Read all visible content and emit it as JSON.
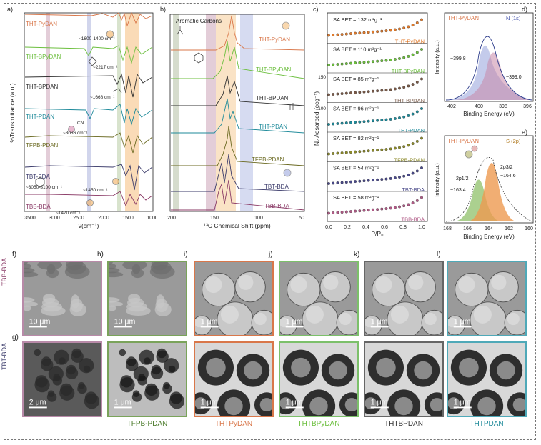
{
  "panels": {
    "a": {
      "letter": "a)",
      "ylabel": "%Transmittance (a.u.)",
      "xlabel": "ν(cm⁻¹)",
      "xticks": [
        "3500",
        "3000",
        "2500",
        "2000",
        "1500",
        "1000"
      ],
      "samples": [
        "THT-PyDAN",
        "THT-BPyDAN",
        "THT-BPDAN",
        "THT-PDAN",
        "TFPB-PDAN",
        "TBT-BDA",
        "TBB-BDA"
      ],
      "annotations": [
        "~1600-1400 cm⁻¹",
        "~2217 cm⁻¹",
        "~1668 cm⁻¹",
        "~3036 cm⁻¹",
        "~3050-3100 cm⁻¹",
        "~1450 cm⁻¹",
        "~1470 cm⁻¹",
        "CN"
      ]
    },
    "b": {
      "letter": "b)",
      "header": "Aromatic Carbons",
      "xlabel": "¹³C Chemical Shift (ppm)",
      "xticks": [
        "200",
        "150",
        "100",
        "50"
      ],
      "samples": [
        "THT-PyDAN",
        "THT-BPyDAN",
        "THT-BPDAN",
        "THT-PDAN",
        "TFPB-PDAN",
        "TBT-BDA",
        "TBB-BDA"
      ]
    },
    "c": {
      "letter": "c)",
      "ylabel": "N₂ Adsorbed (ccg⁻¹)",
      "xlabel": "P/P₀",
      "xticks": [
        "0.0",
        "0.2",
        "0.4",
        "0.6",
        "0.8",
        "1.0"
      ],
      "yticks": [
        "100",
        "150"
      ],
      "rows": [
        {
          "sample": "THT-PyDAN",
          "sa": "SA BET = 132 m²g⁻¹",
          "color": "#e07a2b"
        },
        {
          "sample": "THT-BPyDAN",
          "sa": "SA BET = 110 m²g⁻¹",
          "color": "#6cbf3e"
        },
        {
          "sample": "THT-BPDAN",
          "sa": "SA BET = 85 m²g⁻¹",
          "color": "#7a5a48"
        },
        {
          "sample": "THT-PDAN",
          "sa": "SA BET = 96 m²g⁻¹",
          "color": "#1e8a9a"
        },
        {
          "sample": "TFPB-PDAN",
          "sa": "SA BET = 82 m²g⁻¹",
          "color": "#8c8a2a"
        },
        {
          "sample": "TBT-BDA",
          "sa": "SA BET = 54 m²g⁻¹",
          "color": "#4a4a8a"
        },
        {
          "sample": "TBB-BDA",
          "sa": "SA BET = 58 m²g⁻¹",
          "color": "#b05a86"
        }
      ]
    },
    "d": {
      "letter": "d)",
      "sample": "THT-PyDAN",
      "level": "N (1s)",
      "ylabel": "Intensity (a.u.)",
      "xlabel": "Binding Energy (eV)",
      "xticks": [
        "402",
        "400",
        "398",
        "396"
      ],
      "peaks": [
        "~399.8",
        "~399.0"
      ]
    },
    "e": {
      "letter": "e)",
      "sample": "THT-PyDAN",
      "level": "S (2p)",
      "ylabel": "Intensity (a.u.)",
      "xlabel": "Binding Energy (eV)",
      "xticks": [
        "168",
        "166",
        "164",
        "162",
        "160"
      ],
      "peaks": [
        "2p1/2",
        "~163.4",
        "2p3/2",
        "~164.6"
      ]
    }
  },
  "micrographs": {
    "top_letters": [
      "f)",
      "h)",
      "i)",
      "j)",
      "k)",
      "l)"
    ],
    "bottom_letters": [
      "g)",
      "",
      "",
      "",
      "",
      ""
    ],
    "row_labels": [
      "TBB-BDA",
      "TBT-BDA"
    ],
    "top_scales": [
      "10 μm",
      "10 μm",
      "1 μm",
      "1 μm",
      "1 μm",
      "1 μm"
    ],
    "bottom_scales": [
      "2 μm",
      "1 μm",
      "1 μm",
      "1 μm",
      "1 μm",
      "1 μm"
    ],
    "captions": [
      "",
      "TFPB-PDAN",
      "THTPyDAN",
      "THTBPyDAN",
      "THTBPDAN",
      "THTPDAN"
    ],
    "border_colors": [
      "#b88aa8",
      "#7aa35a",
      "#d9774a",
      "#7cc06a",
      "#666666",
      "#4fa9b8"
    ]
  },
  "colors": {
    "THT-PyDAN": "#e07a2b",
    "THT-BPyDAN": "#6cbf3e",
    "THT-BPDAN": "#333333",
    "THT-PDAN": "#1e8a9a",
    "TFPB-PDAN": "#6b6a22",
    "TBT-BDA": "#3a3a6a",
    "TBB-BDA": "#8a3a66"
  }
}
